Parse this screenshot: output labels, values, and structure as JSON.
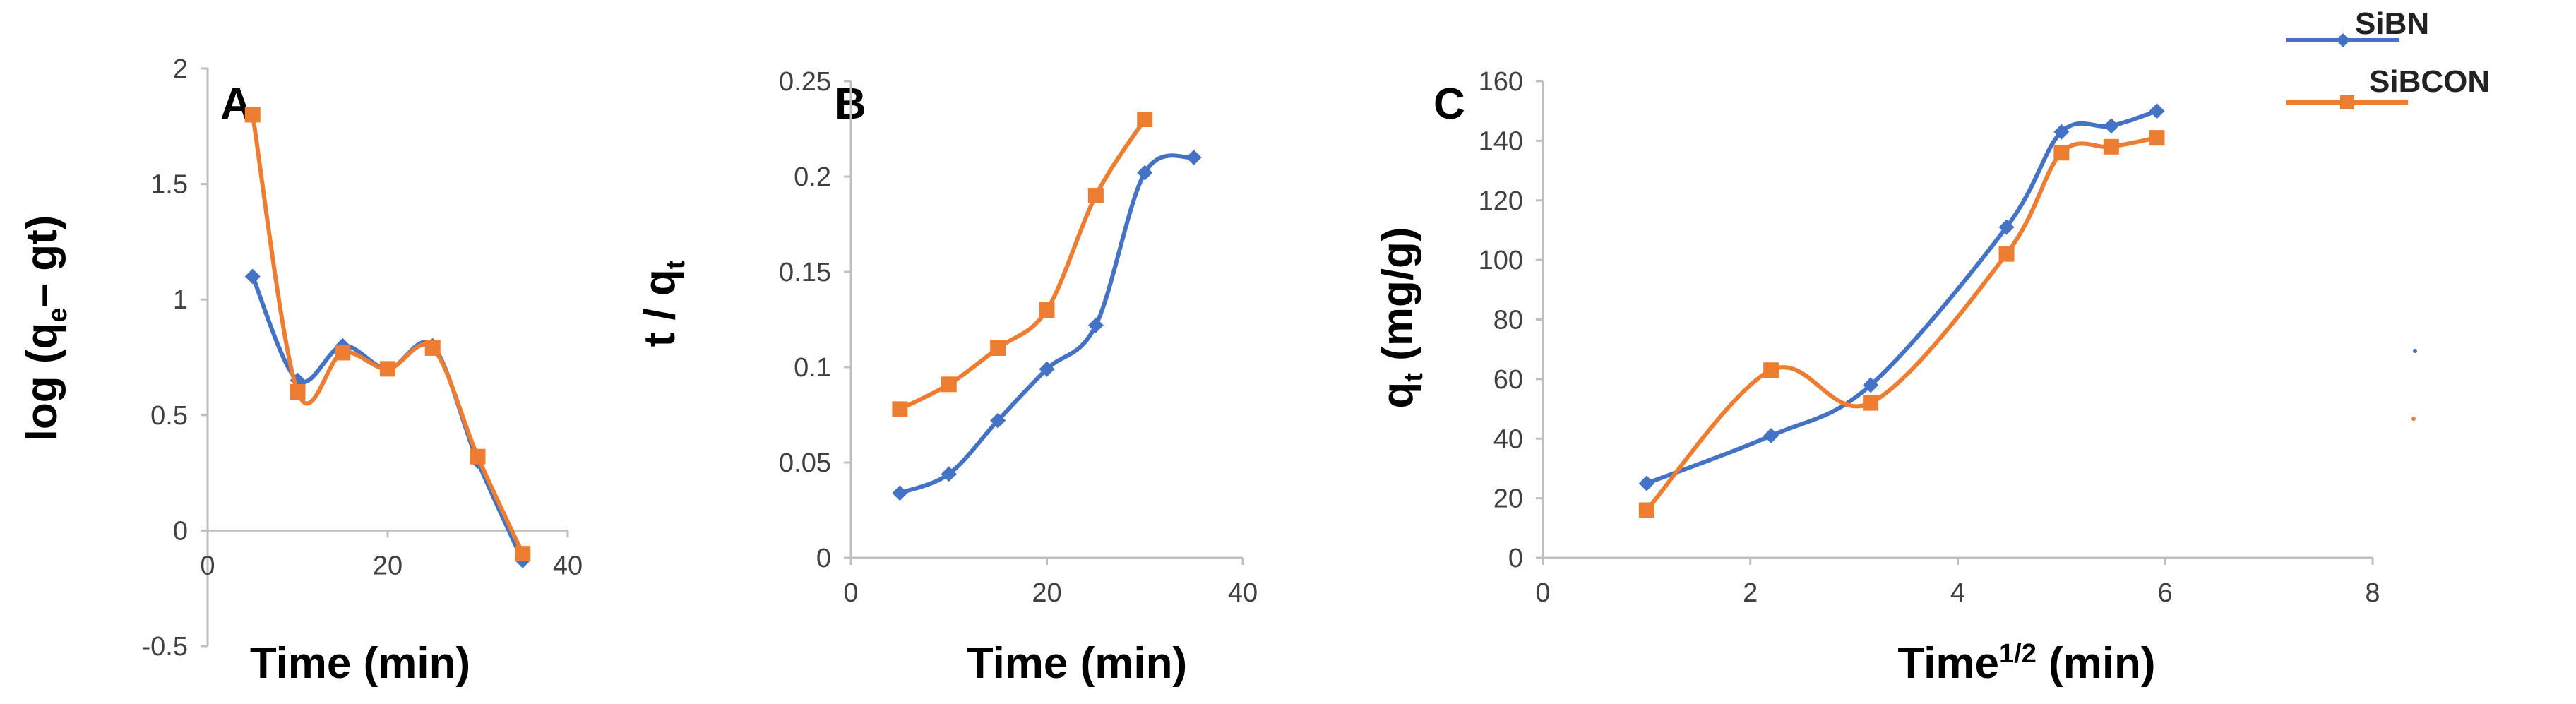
{
  "chart_data": [
    {
      "type": "line",
      "panel": "A",
      "xlabel": "Time (min)",
      "ylabel_parts": {
        "pre": "log (q",
        "sub": "e",
        "post": "– gt)"
      },
      "xlim": [
        0,
        40
      ],
      "ylim": [
        -0.5,
        2
      ],
      "xticks": [
        0,
        20,
        40
      ],
      "yticks": [
        -0.5,
        0,
        0.5,
        1,
        1.5,
        2
      ],
      "xtick_labels": [
        "0",
        "20",
        "40"
      ],
      "ytick_labels": [
        "-0.5",
        "0",
        "0.5",
        "1",
        "1.5",
        "2"
      ],
      "series": [
        {
          "name": "SiBN",
          "color": "#4472c4",
          "marker": "diamond",
          "x": [
            5,
            10,
            15,
            20,
            25,
            30,
            35
          ],
          "y": [
            1.1,
            0.65,
            0.8,
            0.7,
            0.8,
            0.3,
            -0.13
          ]
        },
        {
          "name": "SiBCON",
          "color": "#ed7d31",
          "marker": "square",
          "x": [
            5,
            10,
            15,
            20,
            25,
            30,
            35
          ],
          "y": [
            1.8,
            0.6,
            0.77,
            0.7,
            0.79,
            0.32,
            -0.1
          ]
        }
      ]
    },
    {
      "type": "line",
      "panel": "B",
      "xlabel": "Time (min)",
      "ylabel_parts": {
        "pre": "t / q",
        "sub": "t",
        "post": ""
      },
      "xlim": [
        0,
        40
      ],
      "ylim": [
        0,
        0.25
      ],
      "xticks": [
        0,
        20,
        40
      ],
      "yticks": [
        0,
        0.05,
        0.1,
        0.15,
        0.2,
        0.25
      ],
      "xtick_labels": [
        "0",
        "20",
        "40"
      ],
      "ytick_labels": [
        "0",
        "0.05",
        "0.1",
        "0.15",
        "0.2",
        "0.25"
      ],
      "series": [
        {
          "name": "SiBN",
          "color": "#4472c4",
          "marker": "diamond",
          "x": [
            5,
            10,
            15,
            20,
            25,
            30,
            35
          ],
          "y": [
            0.034,
            0.044,
            0.072,
            0.099,
            0.122,
            0.202,
            0.21
          ]
        },
        {
          "name": "SiBCON",
          "color": "#ed7d31",
          "marker": "square",
          "x": [
            5,
            10,
            15,
            20,
            25,
            30
          ],
          "y": [
            0.078,
            0.091,
            0.11,
            0.13,
            0.19,
            0.23
          ]
        }
      ]
    },
    {
      "type": "line",
      "panel": "C",
      "xlabel_parts": {
        "pre": "Time",
        "sup": "1/2",
        "post": " (min)"
      },
      "ylabel_parts": {
        "pre": "q",
        "sub": "t",
        "post": " (mg/g)"
      },
      "xlim": [
        0,
        8
      ],
      "ylim": [
        0,
        160
      ],
      "xticks": [
        0,
        2,
        4,
        6,
        8
      ],
      "yticks": [
        0,
        20,
        40,
        60,
        80,
        100,
        120,
        140,
        160
      ],
      "xtick_labels": [
        "0",
        "2",
        "4",
        "6",
        "8"
      ],
      "ytick_labels": [
        "0",
        "20",
        "40",
        "60",
        "80",
        "100",
        "120",
        "140",
        "160"
      ],
      "legend": [
        "SiBN",
        "SiBCON"
      ],
      "series": [
        {
          "name": "SiBN",
          "color": "#4472c4",
          "marker": "diamond",
          "x": [
            1,
            2.2,
            3.16,
            4.47,
            5,
            5.48,
            5.92
          ],
          "y": [
            25,
            41,
            58,
            111,
            143,
            145,
            150
          ]
        },
        {
          "name": "SiBCON",
          "color": "#ed7d31",
          "marker": "square",
          "x": [
            1,
            2.2,
            3.16,
            4.47,
            5,
            5.48,
            5.92
          ],
          "y": [
            16,
            63,
            52,
            102,
            136,
            138,
            141
          ]
        }
      ]
    }
  ]
}
